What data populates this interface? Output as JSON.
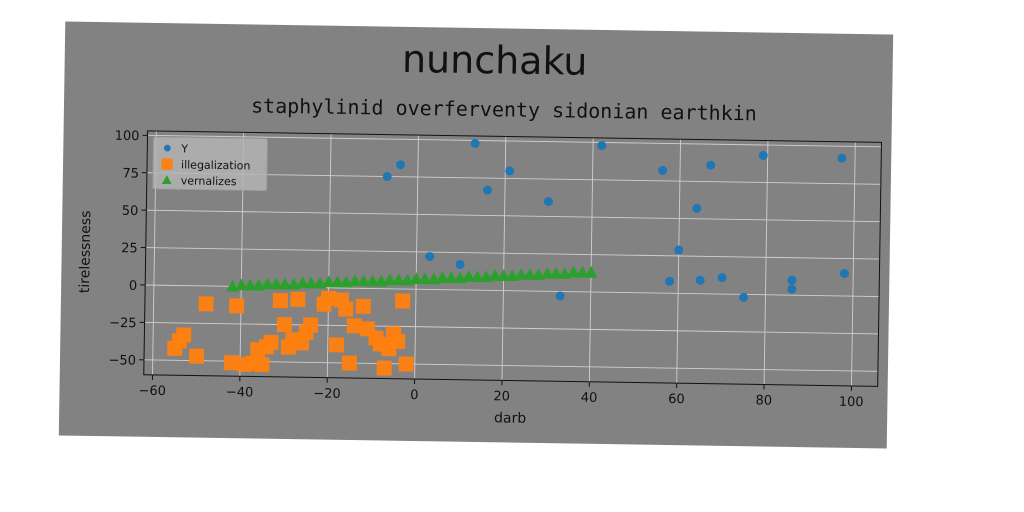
{
  "colors": {
    "background": "#828282",
    "series_colors": [
      "#1f77b4",
      "#ff7f0e",
      "#2ca02c"
    ]
  },
  "chart_data": {
    "type": "scatter",
    "title": "nunchaku",
    "subtitle": "staphylinid overferventy sidonian earthkin",
    "xlabel": "darb",
    "ylabel": "tirelessness",
    "xlim": [
      -62,
      106
    ],
    "ylim": [
      -60,
      103
    ],
    "xticks": [
      -60,
      -40,
      -20,
      0,
      20,
      40,
      60,
      80,
      100
    ],
    "yticks": [
      -50,
      -25,
      0,
      25,
      50,
      75,
      100
    ],
    "grid": true,
    "legend": "top-left",
    "series": [
      {
        "name": "Y",
        "marker": "circle",
        "points": [
          [
            -7,
            75
          ],
          [
            -4,
            83
          ],
          [
            3,
            22
          ],
          [
            10,
            17
          ],
          [
            13,
            98
          ],
          [
            16,
            67
          ],
          [
            21,
            80
          ],
          [
            30,
            60
          ],
          [
            33,
            -3
          ],
          [
            42,
            98
          ],
          [
            56,
            82
          ],
          [
            58,
            8
          ],
          [
            60,
            29
          ],
          [
            64,
            57
          ],
          [
            65,
            9
          ],
          [
            67,
            86
          ],
          [
            70,
            11
          ],
          [
            75,
            -2
          ],
          [
            79,
            93
          ],
          [
            86,
            4
          ],
          [
            86,
            10
          ],
          [
            97,
            92
          ],
          [
            98,
            15
          ]
        ]
      },
      {
        "name": "illegalization",
        "marker": "square",
        "points": [
          [
            -55,
            -42
          ],
          [
            -54,
            -37
          ],
          [
            -53,
            -33
          ],
          [
            -50,
            -47
          ],
          [
            -48,
            -12
          ],
          [
            -42,
            -51
          ],
          [
            -41,
            -13
          ],
          [
            -39,
            -52
          ],
          [
            -37,
            -51
          ],
          [
            -36,
            -42
          ],
          [
            -35,
            -52
          ],
          [
            -34,
            -40
          ],
          [
            -33,
            -37
          ],
          [
            -31,
            -9
          ],
          [
            -30,
            -25
          ],
          [
            -29,
            -40
          ],
          [
            -28,
            -35
          ],
          [
            -27,
            -8
          ],
          [
            -26,
            -37
          ],
          [
            -25,
            -30
          ],
          [
            -24,
            -25
          ],
          [
            -21,
            -11
          ],
          [
            -20,
            -7
          ],
          [
            -18,
            -38
          ],
          [
            -17,
            -8
          ],
          [
            -16,
            -14
          ],
          [
            -15,
            -50
          ],
          [
            -14,
            -25
          ],
          [
            -12,
            -12
          ],
          [
            -11,
            -27
          ],
          [
            -9,
            -33
          ],
          [
            -8,
            -37
          ],
          [
            -7,
            -53
          ],
          [
            -6,
            -40
          ],
          [
            -5,
            -30
          ],
          [
            -4,
            -35
          ],
          [
            -3,
            -8
          ],
          [
            -2,
            -50
          ]
        ]
      },
      {
        "name": "vernalizes",
        "marker": "triangle",
        "points": [
          [
            -42,
            0
          ],
          [
            -40,
            1
          ],
          [
            -38,
            1
          ],
          [
            -36,
            1
          ],
          [
            -34,
            2
          ],
          [
            -32,
            2
          ],
          [
            -30,
            2
          ],
          [
            -28,
            2
          ],
          [
            -26,
            3
          ],
          [
            -24,
            3
          ],
          [
            -22,
            3
          ],
          [
            -20,
            4
          ],
          [
            -18,
            4
          ],
          [
            -16,
            4
          ],
          [
            -14,
            5
          ],
          [
            -12,
            5
          ],
          [
            -10,
            5
          ],
          [
            -8,
            5
          ],
          [
            -6,
            6
          ],
          [
            -4,
            6
          ],
          [
            -2,
            6
          ],
          [
            0,
            7
          ],
          [
            2,
            7
          ],
          [
            4,
            7
          ],
          [
            6,
            8
          ],
          [
            8,
            8
          ],
          [
            10,
            8
          ],
          [
            12,
            9
          ],
          [
            14,
            9
          ],
          [
            16,
            9
          ],
          [
            18,
            10
          ],
          [
            20,
            10
          ],
          [
            22,
            10
          ],
          [
            24,
            11
          ],
          [
            26,
            11
          ],
          [
            28,
            11
          ],
          [
            30,
            12
          ],
          [
            32,
            12
          ],
          [
            34,
            12
          ],
          [
            36,
            13
          ],
          [
            38,
            13
          ],
          [
            40,
            13
          ]
        ]
      }
    ]
  }
}
